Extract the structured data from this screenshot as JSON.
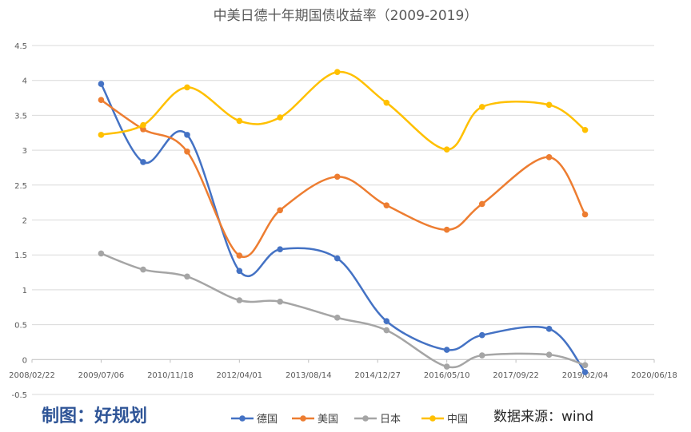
{
  "chart_data": {
    "type": "line",
    "title": "中美日德十年期国债收益率（2009-2019）",
    "xlabel": "",
    "ylabel": "",
    "x_ticks": [
      "2008/02/22",
      "2009/07/06",
      "2010/11/18",
      "2012/04/01",
      "2013/08/14",
      "2014/12/27",
      "2016/05/10",
      "2017/09/22",
      "2019/02/04",
      "2020/06/18"
    ],
    "y_ticks": [
      "4.5",
      "4",
      "3.5",
      "3",
      "2.5",
      "2",
      "1.5",
      "1",
      "0.5",
      "0",
      "-0.5"
    ],
    "ylim": [
      -0.5,
      4.5
    ],
    "grid": "horizontal",
    "legend_position": "bottom",
    "smooth": true,
    "series": [
      {
        "name": "德国",
        "color": "#4472C4",
        "points": [
          [
            "2009/07/06",
            3.95
          ],
          [
            "2010/05/06",
            2.83
          ],
          [
            "2011/03/20",
            3.22
          ],
          [
            "2012/04/01",
            1.27
          ],
          [
            "2013/01/20",
            1.58
          ],
          [
            "2014/03/10",
            1.45
          ],
          [
            "2015/03/01",
            0.55
          ],
          [
            "2016/05/10",
            0.14
          ],
          [
            "2017/01/20",
            0.35
          ],
          [
            "2018/05/20",
            0.44
          ],
          [
            "2019/02/04",
            -0.18
          ]
        ]
      },
      {
        "name": "美国",
        "color": "#ED7D31",
        "points": [
          [
            "2009/07/06",
            3.72
          ],
          [
            "2010/05/06",
            3.3
          ],
          [
            "2011/03/20",
            2.98
          ],
          [
            "2012/04/01",
            1.49
          ],
          [
            "2013/01/20",
            2.14
          ],
          [
            "2014/03/10",
            2.62
          ],
          [
            "2015/03/01",
            2.21
          ],
          [
            "2016/05/10",
            1.86
          ],
          [
            "2017/01/20",
            2.23
          ],
          [
            "2018/05/20",
            2.9
          ],
          [
            "2019/02/04",
            2.08
          ]
        ]
      },
      {
        "name": "日本",
        "color": "#A5A5A5",
        "points": [
          [
            "2009/07/06",
            1.52
          ],
          [
            "2010/05/06",
            1.29
          ],
          [
            "2011/03/20",
            1.19
          ],
          [
            "2012/04/01",
            0.85
          ],
          [
            "2013/01/20",
            0.83
          ],
          [
            "2014/03/10",
            0.6
          ],
          [
            "2015/03/01",
            0.42
          ],
          [
            "2016/05/10",
            -0.1
          ],
          [
            "2017/01/20",
            0.06
          ],
          [
            "2018/05/20",
            0.07
          ],
          [
            "2019/02/04",
            -0.08
          ]
        ]
      },
      {
        "name": "中国",
        "color": "#FFC000",
        "points": [
          [
            "2009/07/06",
            3.22
          ],
          [
            "2010/05/06",
            3.36
          ],
          [
            "2011/03/20",
            3.9
          ],
          [
            "2012/04/01",
            3.42
          ],
          [
            "2013/01/20",
            3.47
          ],
          [
            "2014/03/10",
            4.12
          ],
          [
            "2015/03/01",
            3.68
          ],
          [
            "2016/05/10",
            3.01
          ],
          [
            "2017/01/20",
            3.62
          ],
          [
            "2018/05/20",
            3.65
          ],
          [
            "2019/02/04",
            3.29
          ]
        ]
      }
    ]
  },
  "footer": {
    "credit": "制图：好规划",
    "source": "数据来源：wind"
  }
}
